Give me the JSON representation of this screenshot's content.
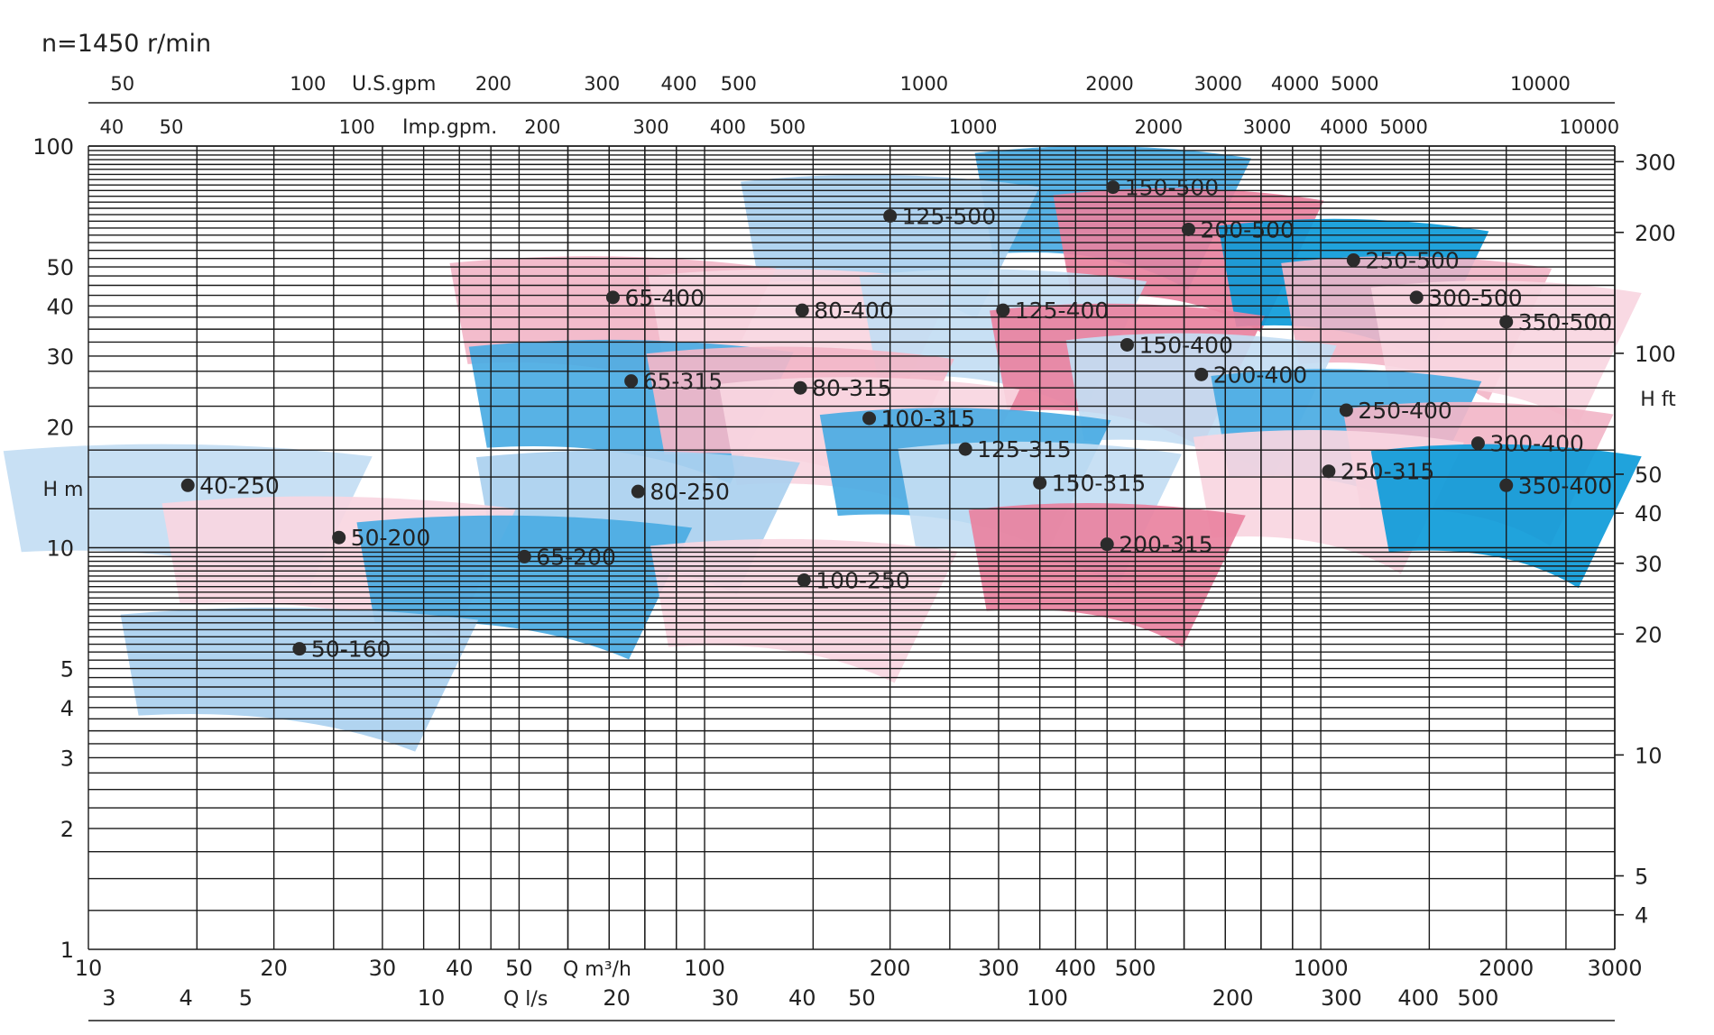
{
  "speed_label": "n=1450 r/min",
  "colors": {
    "light_blue": "#aad0ef",
    "pale_blue": "#c3ddf3",
    "mid_blue": "#4aabe3",
    "deep_blue": "#0d9bd9",
    "pink": "#e9829f",
    "light_pink": "#f2b6c8",
    "pale_pink": "#f9d6e1",
    "grid": "#1a1a1a",
    "dot": "#2b2b2b"
  },
  "chart_data": {
    "type": "area",
    "title": "n=1450 r/min",
    "x_axis": {
      "scale": "log",
      "range": [
        10,
        3000
      ],
      "label": "Q m³/h",
      "ticks": [
        "10",
        "20",
        "30",
        "40",
        "50",
        "100",
        "200",
        "300",
        "400",
        "500",
        "1000",
        "2000",
        "3000"
      ]
    },
    "x_axis_ls": {
      "label": "Q l/s",
      "ticks": [
        "3",
        "4",
        "5",
        "10",
        "20",
        "30",
        "40",
        "50",
        "100",
        "200",
        "300",
        "400",
        "500"
      ]
    },
    "x_axis_us": {
      "label": "U.S.gpm",
      "ticks": [
        "50",
        "100",
        "200",
        "300",
        "400",
        "500",
        "1000",
        "2000",
        "3000",
        "4000",
        "5000",
        "10000"
      ]
    },
    "x_axis_imp": {
      "label": "Imp.gpm.",
      "ticks": [
        "40",
        "50",
        "100",
        "200",
        "300",
        "400",
        "500",
        "1000",
        "2000",
        "3000",
        "4000",
        "5000",
        "10000"
      ]
    },
    "y_axis": {
      "scale": "log",
      "range": [
        1,
        100
      ],
      "label": "H m",
      "ticks": [
        "1",
        "2",
        "3",
        "4",
        "5",
        "10",
        "20",
        "30",
        "40",
        "50",
        "100"
      ]
    },
    "y_axis_ft": {
      "label": "H ft",
      "ticks": [
        "4",
        "5",
        "10",
        "20",
        "30",
        "40",
        "50",
        "100",
        "200",
        "300"
      ]
    },
    "models": [
      {
        "name": "50-160",
        "q": 22,
        "h": 5.6,
        "color": "light_blue"
      },
      {
        "name": "40-250",
        "q": 14.5,
        "h": 14.3,
        "color": "pale_blue"
      },
      {
        "name": "50-200",
        "q": 25.5,
        "h": 10.6,
        "color": "pale_pink"
      },
      {
        "name": "65-200",
        "q": 51,
        "h": 9.5,
        "color": "mid_blue"
      },
      {
        "name": "80-250",
        "q": 78,
        "h": 13.8,
        "color": "light_blue"
      },
      {
        "name": "100-250",
        "q": 145,
        "h": 8.3,
        "color": "pale_pink"
      },
      {
        "name": "65-315",
        "q": 76,
        "h": 26,
        "color": "mid_blue"
      },
      {
        "name": "80-315",
        "q": 143,
        "h": 25,
        "color": "light_pink"
      },
      {
        "name": "100-315",
        "q": 185,
        "h": 21,
        "color": "pale_pink"
      },
      {
        "name": "125-315",
        "q": 265,
        "h": 17.6,
        "color": "mid_blue"
      },
      {
        "name": "150-315",
        "q": 350,
        "h": 14.5,
        "color": "pale_blue"
      },
      {
        "name": "200-315",
        "q": 450,
        "h": 10.2,
        "color": "pink"
      },
      {
        "name": "65-400",
        "q": 71,
        "h": 42,
        "color": "light_pink"
      },
      {
        "name": "80-400",
        "q": 144,
        "h": 39,
        "color": "pale_pink"
      },
      {
        "name": "125-400",
        "q": 305,
        "h": 39,
        "color": "pale_blue"
      },
      {
        "name": "150-400",
        "q": 485,
        "h": 32,
        "color": "pink"
      },
      {
        "name": "200-400",
        "q": 640,
        "h": 27,
        "color": "pale_blue"
      },
      {
        "name": "250-400",
        "q": 1100,
        "h": 22,
        "color": "mid_blue"
      },
      {
        "name": "250-315",
        "q": 1030,
        "h": 15.5,
        "color": "pale_pink"
      },
      {
        "name": "300-400",
        "q": 1800,
        "h": 18.2,
        "color": "light_pink"
      },
      {
        "name": "350-400",
        "q": 2000,
        "h": 14.3,
        "color": "deep_blue"
      },
      {
        "name": "125-500",
        "q": 200,
        "h": 67,
        "color": "light_blue"
      },
      {
        "name": "150-500",
        "q": 460,
        "h": 79,
        "color": "mid_blue"
      },
      {
        "name": "200-500",
        "q": 610,
        "h": 62,
        "color": "pink"
      },
      {
        "name": "250-500",
        "q": 1130,
        "h": 52,
        "color": "deep_blue"
      },
      {
        "name": "300-500",
        "q": 1430,
        "h": 42,
        "color": "light_pink"
      },
      {
        "name": "350-500",
        "q": 2000,
        "h": 36.5,
        "color": "pale_pink"
      }
    ]
  }
}
